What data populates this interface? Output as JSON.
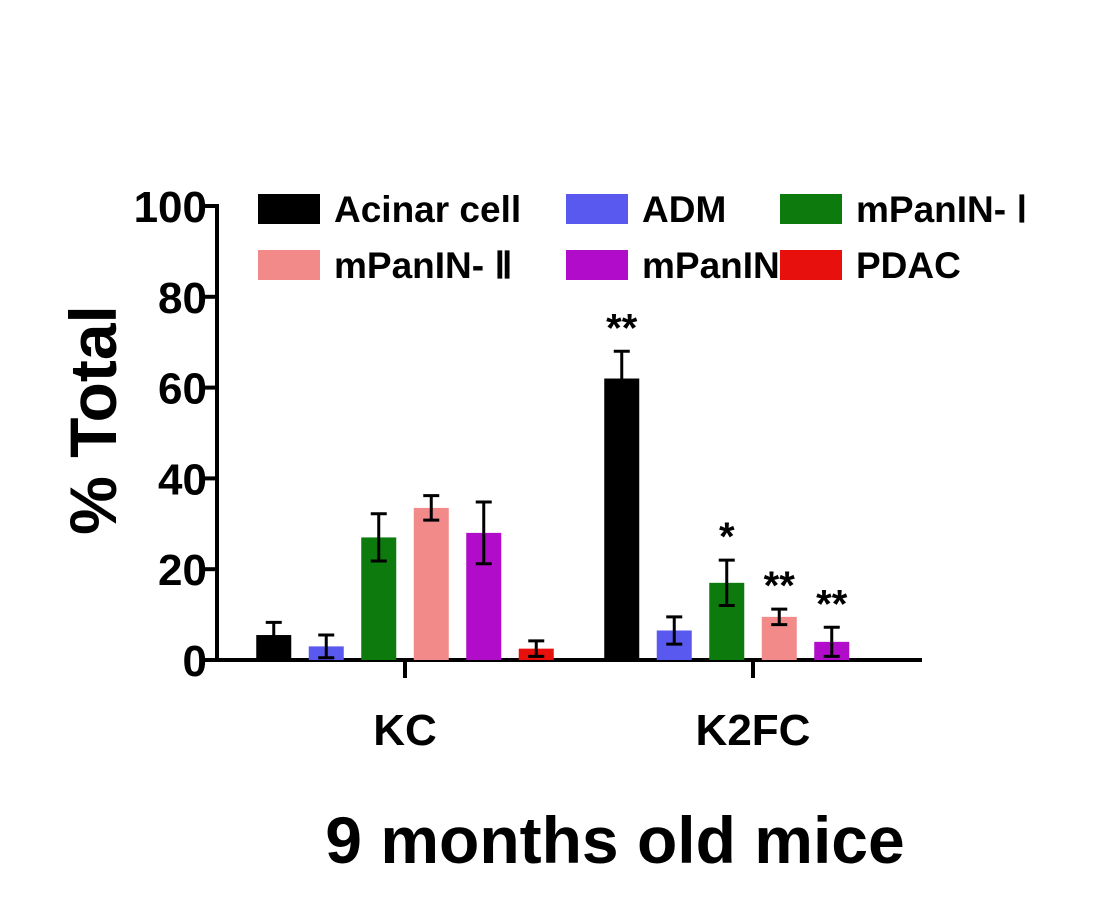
{
  "chart_data": {
    "type": "bar",
    "title": "",
    "xlabel": "9 months old mice",
    "ylabel": "% Total",
    "ylim": [
      0,
      100
    ],
    "yticks": [
      "0",
      "20",
      "40",
      "60",
      "80",
      "100"
    ],
    "categories": [
      "KC",
      "K2FC"
    ],
    "legend_position": "top",
    "series": [
      {
        "name": "Acinar cell",
        "color": "#000000",
        "values": [
          5.5,
          62
        ],
        "errors": [
          2.8,
          6
        ],
        "annotations": [
          "",
          "**"
        ]
      },
      {
        "name": "ADM",
        "color": "#5959f0",
        "values": [
          3,
          6.5
        ],
        "errors": [
          2.5,
          3
        ],
        "annotations": [
          "",
          ""
        ]
      },
      {
        "name": "mPanIN- Ⅰ",
        "color": "#0c7a0c",
        "values": [
          27,
          17
        ],
        "errors": [
          5.2,
          5
        ],
        "annotations": [
          "",
          "*"
        ]
      },
      {
        "name": "mPanIN- Ⅱ",
        "color": "#f28a8a",
        "values": [
          33.5,
          9.5
        ],
        "errors": [
          2.7,
          1.7
        ],
        "annotations": [
          "",
          "**"
        ]
      },
      {
        "name": "mPanIN- Ⅲ",
        "color": "#b00cc9",
        "values": [
          28,
          4
        ],
        "errors": [
          6.8,
          3.2
        ],
        "annotations": [
          "",
          "**"
        ]
      },
      {
        "name": "PDAC",
        "color": "#e8100c",
        "values": [
          2.5,
          0
        ],
        "errors": [
          1.7,
          0
        ],
        "annotations": [
          "",
          ""
        ]
      }
    ]
  }
}
